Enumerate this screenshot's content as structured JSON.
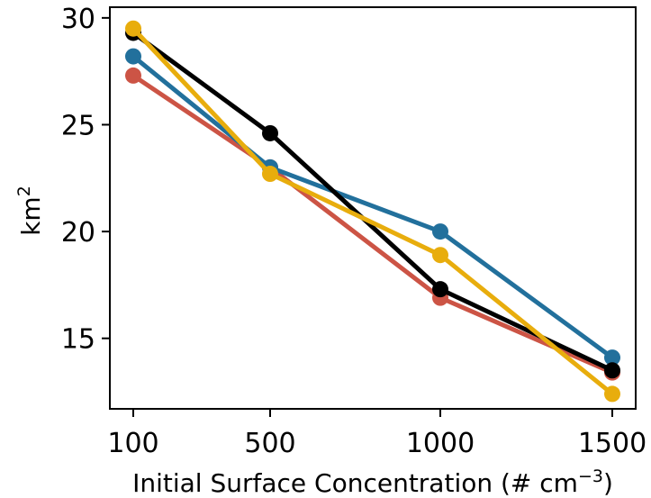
{
  "chart_data": {
    "type": "line",
    "title": "",
    "xlabel": "Initial Surface Concentration (# cm",
    "xlabel_superscript": "−3",
    "xlabel_suffix": ")",
    "ylabel": "km",
    "ylabel_superscript": "2",
    "x": [
      100,
      500,
      1000,
      1500
    ],
    "x_tick_labels": [
      "100",
      "500",
      "1000",
      "1500"
    ],
    "y_ticks": [
      15,
      20,
      25,
      30
    ],
    "y_tick_labels": [
      "15",
      "20",
      "25",
      "30"
    ],
    "ylim": [
      11.7,
      30.5
    ],
    "grid": false,
    "series": [
      {
        "color": "#cc5445",
        "values": [
          27.3,
          23.0,
          16.9,
          13.4
        ]
      },
      {
        "color": "#22709c",
        "values": [
          28.2,
          23.0,
          20.0,
          14.1
        ]
      },
      {
        "color": "#000000",
        "values": [
          29.3,
          24.6,
          17.3,
          13.5
        ]
      },
      {
        "color": "#e8ad0d",
        "values": [
          29.5,
          22.7,
          18.9,
          12.4
        ]
      }
    ]
  }
}
